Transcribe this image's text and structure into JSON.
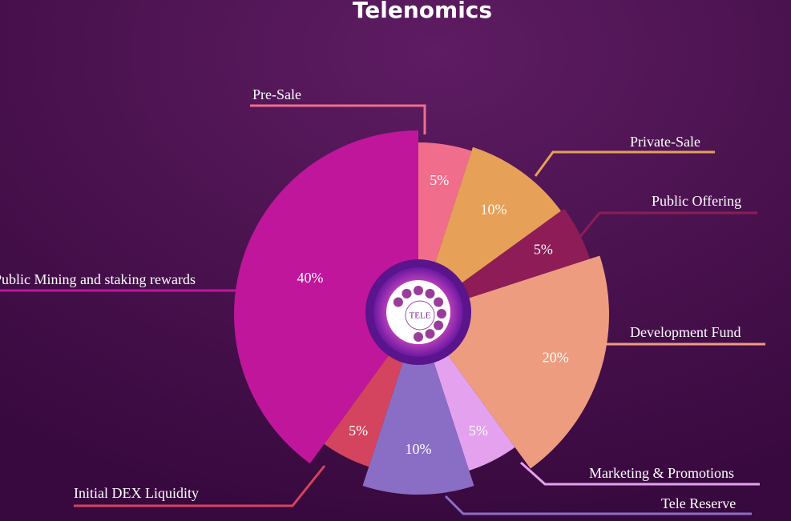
{
  "chart_data": {
    "type": "pie",
    "title": "Telenomics",
    "center_label": "TELE",
    "categories": [
      "Pre-Sale",
      "Private-Sale",
      "Public Offering",
      "Development Fund",
      "Marketing & Promotions",
      "Tele Reserve",
      "Initial DEX Liquidity",
      "Public Mining and staking rewards"
    ],
    "values": [
      5,
      10,
      5,
      20,
      5,
      10,
      5,
      40
    ],
    "value_labels": [
      "5%",
      "10%",
      "5%",
      "20%",
      "5%",
      "10%",
      "5%",
      "40%"
    ],
    "colors": [
      "#f06e8c",
      "#e6a058",
      "#8e1c56",
      "#ee9c80",
      "#e4a2ee",
      "#8a6ec6",
      "#d4445e",
      "#c0169c"
    ]
  }
}
